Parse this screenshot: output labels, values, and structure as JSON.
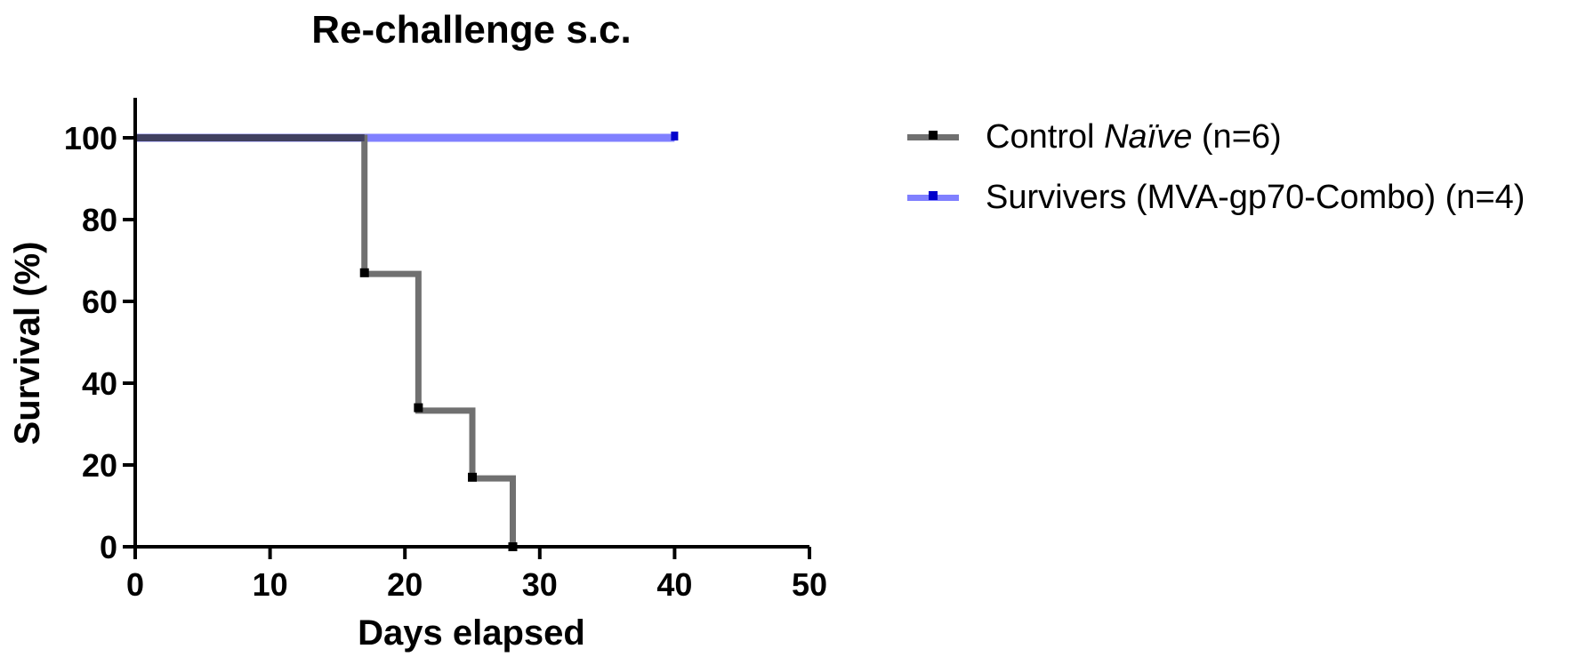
{
  "chart_data": {
    "type": "line",
    "subtype": "kaplan-meier-survival",
    "title": "Re-challenge s.c.",
    "xlabel": "Days elapsed",
    "ylabel": "Survival (%)",
    "xlim": [
      0,
      50
    ],
    "ylim": [
      0,
      110
    ],
    "xticks": [
      0,
      10,
      20,
      30,
      40,
      50
    ],
    "yticks": [
      0,
      20,
      40,
      60,
      80,
      100
    ],
    "grid": false,
    "legend_position": "right",
    "series": [
      {
        "name": "Control Naïve (n=6)",
        "label_prefix": "Control ",
        "label_italic": "Naïve",
        "label_suffix": " (n=6)",
        "color": "#707070",
        "marker_color": "#000000",
        "x": [
          0,
          17,
          21,
          25,
          28
        ],
        "y": [
          100,
          66.7,
          33.3,
          16.7,
          0
        ],
        "censored": [],
        "event_markers": [
          [
            17,
            67
          ],
          [
            21,
            34
          ],
          [
            25,
            17
          ],
          [
            28,
            0
          ]
        ]
      },
      {
        "name": "Survivers (MVA-gp70-Combo) (n=4)",
        "label_prefix": "Survivers (MVA-gp70-Combo) (n=4)",
        "label_italic": "",
        "label_suffix": "",
        "color": "#8080ff",
        "marker_color": "#0000cc",
        "x": [
          0,
          40
        ],
        "y": [
          100,
          100
        ],
        "censored": [
          [
            40,
            100
          ]
        ],
        "event_markers": []
      }
    ]
  }
}
